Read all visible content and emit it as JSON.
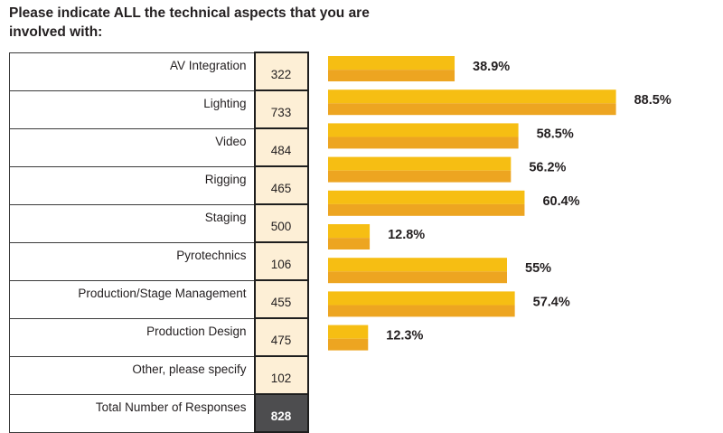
{
  "title": "Please indicate ALL the technical aspects that you are involved with:",
  "colors": {
    "bar_top": "#F6BE13",
    "bar_bottom": "#EDA521",
    "value_cell": "#FDEFD6",
    "total_cell": "#4D4D4F"
  },
  "table": {
    "rows": [
      {
        "label": "AV Integration",
        "count": "322"
      },
      {
        "label": "Lighting",
        "count": "733"
      },
      {
        "label": "Video",
        "count": "484"
      },
      {
        "label": "Rigging",
        "count": "465"
      },
      {
        "label": "Staging",
        "count": "500"
      },
      {
        "label": "Pyrotechnics",
        "count": "106"
      },
      {
        "label": "Production/Stage Management",
        "count": "455"
      },
      {
        "label": "Production Design",
        "count": "475"
      },
      {
        "label": "Other, please specify",
        "count": "102"
      }
    ],
    "total": {
      "label": "Total Number of Responses",
      "count": "828"
    }
  },
  "chart_data": {
    "type": "bar",
    "orientation": "horizontal",
    "title": "Please indicate ALL the technical aspects that you are involved with:",
    "categories": [
      "AV Integration",
      "Lighting",
      "Video",
      "Rigging",
      "Staging",
      "Pyrotechnics",
      "Production/Stage Management",
      "Production Design",
      "Other, please specify"
    ],
    "counts": [
      322,
      733,
      484,
      465,
      500,
      106,
      455,
      475,
      102
    ],
    "values": [
      38.9,
      88.5,
      58.5,
      56.2,
      60.4,
      12.8,
      55,
      57.4,
      12.3
    ],
    "labels": [
      "38.9%",
      "88.5%",
      "58.5%",
      "56.2%",
      "60.4%",
      "12.8%",
      "55%",
      "57.4%",
      "12.3%"
    ],
    "total_responses": 828,
    "xlabel": "",
    "ylabel": "",
    "xlim": [
      0,
      100
    ],
    "grid": false,
    "legend": "none"
  }
}
